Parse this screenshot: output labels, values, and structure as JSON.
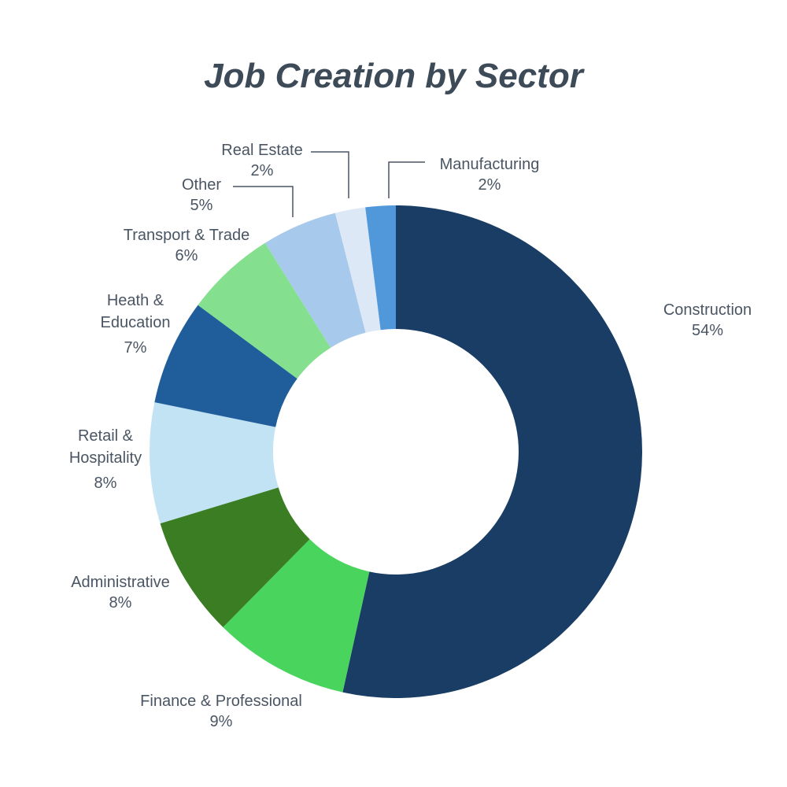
{
  "chart_data": {
    "type": "pie",
    "title": "Job Creation by Sector",
    "donut": true,
    "slices": [
      {
        "label": [
          "Construction"
        ],
        "value": 54,
        "value_text": "54%",
        "color": "#193d64"
      },
      {
        "label": [
          "Finance & Professional"
        ],
        "value": 9,
        "value_text": "9%",
        "color": "#49d45d"
      },
      {
        "label": [
          "Administrative"
        ],
        "value": 8,
        "value_text": "8%",
        "color": "#3a7d23"
      },
      {
        "label": [
          "Retail &",
          "Hospitality"
        ],
        "value": 8,
        "value_text": "8%",
        "color": "#c2e3f4"
      },
      {
        "label": [
          "Heath &",
          "Education"
        ],
        "value": 7,
        "value_text": "7%",
        "color": "#205e9b"
      },
      {
        "label": [
          "Transport & Trade"
        ],
        "value": 6,
        "value_text": "6%",
        "color": "#84e08e"
      },
      {
        "label": [
          "Other"
        ],
        "value": 5,
        "value_text": "5%",
        "color": "#a7c9eb"
      },
      {
        "label": [
          "Real Estate"
        ],
        "value": 2,
        "value_text": "2%",
        "color": "#dce8f6"
      },
      {
        "label": [
          "Manufacturing"
        ],
        "value": 2,
        "value_text": "2%",
        "color": "#5198db"
      }
    ]
  }
}
